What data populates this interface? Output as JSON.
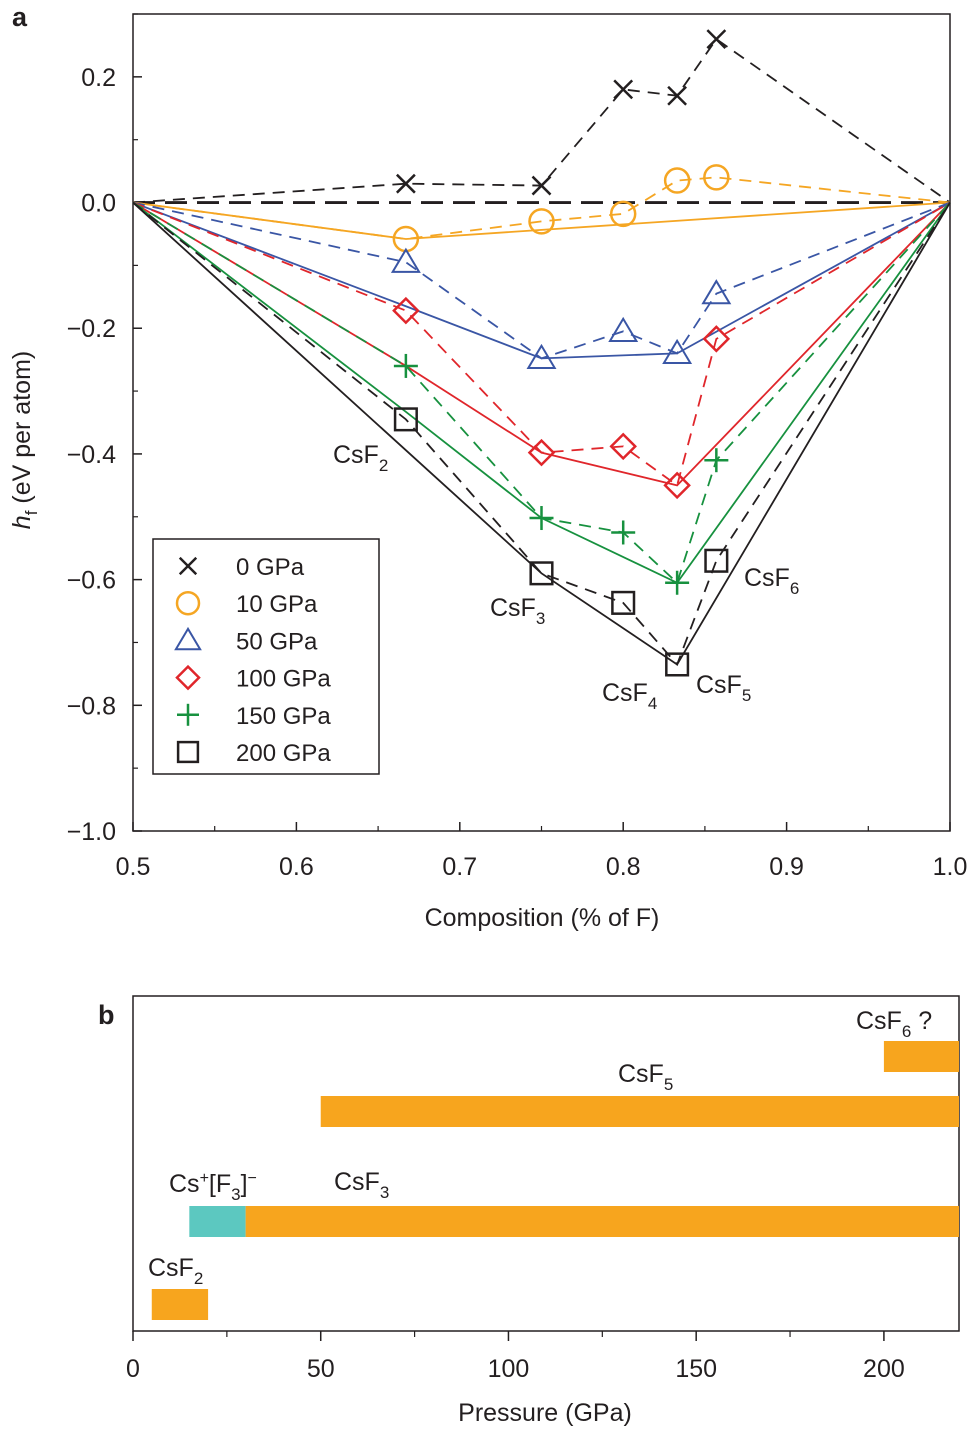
{
  "panels": {
    "a_label": "a",
    "b_label": "b"
  },
  "chart_data": [
    {
      "type": "scatter",
      "panel": "a",
      "title": "",
      "xlabel": "Composition (% of F)",
      "ylabel_main": "h",
      "ylabel_sub": "f",
      "ylabel_rest": " (eV per atom)",
      "xlim": [
        0.5,
        1.0
      ],
      "ylim": [
        -1.0,
        0.3
      ],
      "x_ticks": [
        {
          "v": 0.5,
          "label": "0.5"
        },
        {
          "v": 0.6,
          "label": "0.6"
        },
        {
          "v": 0.7,
          "label": "0.7"
        },
        {
          "v": 0.8,
          "label": "0.8"
        },
        {
          "v": 0.9,
          "label": "0.9"
        },
        {
          "v": 1.0,
          "label": "1.0"
        }
      ],
      "y_ticks": [
        {
          "v": 0.2,
          "label": "0.2"
        },
        {
          "v": 0.0,
          "label": "0.0"
        },
        {
          "v": -0.2,
          "label": "−0.2"
        },
        {
          "v": -0.4,
          "label": "−0.4"
        },
        {
          "v": -0.6,
          "label": "−0.6"
        },
        {
          "v": -0.8,
          "label": "−0.8"
        },
        {
          "v": -1.0,
          "label": "−1.0"
        }
      ],
      "series": [
        {
          "name": "0 GPa",
          "marker": "x",
          "color": "#231f20",
          "points": [
            [
              0.5,
              0.0
            ],
            [
              0.667,
              0.03
            ],
            [
              0.75,
              0.027
            ],
            [
              0.8,
              0.18
            ],
            [
              0.833,
              0.17
            ],
            [
              0.857,
              0.26
            ],
            [
              1.0,
              0.0
            ]
          ],
          "hull": [
            [
              0.5,
              0.0
            ],
            [
              1.0,
              0.0
            ]
          ],
          "hull_style": "longdash"
        },
        {
          "name": "10 GPa",
          "marker": "circle",
          "color": "#f5a623",
          "points": [
            [
              0.5,
              0.0
            ],
            [
              0.667,
              -0.058
            ],
            [
              0.75,
              -0.03
            ],
            [
              0.8,
              -0.018
            ],
            [
              0.833,
              0.035
            ],
            [
              0.857,
              0.04
            ],
            [
              1.0,
              0.0
            ]
          ],
          "hull": [
            [
              0.5,
              0.0
            ],
            [
              0.667,
              -0.058
            ],
            [
              1.0,
              0.0
            ]
          ]
        },
        {
          "name": "50 GPa",
          "marker": "triangle",
          "color": "#3a56a5",
          "points": [
            [
              0.5,
              0.0
            ],
            [
              0.667,
              -0.095
            ],
            [
              0.75,
              -0.248
            ],
            [
              0.8,
              -0.205
            ],
            [
              0.833,
              -0.24
            ],
            [
              0.857,
              -0.145
            ],
            [
              1.0,
              0.0
            ]
          ],
          "hull": [
            [
              0.5,
              0.0
            ],
            [
              0.667,
              -0.165
            ],
            [
              0.75,
              -0.248
            ],
            [
              0.833,
              -0.24
            ],
            [
              1.0,
              0.0
            ]
          ]
        },
        {
          "name": "100 GPa",
          "marker": "diamond",
          "color": "#e0262b",
          "points": [
            [
              0.5,
              0.0
            ],
            [
              0.667,
              -0.172
            ],
            [
              0.75,
              -0.398
            ],
            [
              0.8,
              -0.388
            ],
            [
              0.833,
              -0.45
            ],
            [
              0.857,
              -0.217
            ],
            [
              1.0,
              0.0
            ]
          ],
          "hull": [
            [
              0.5,
              0.0
            ],
            [
              0.667,
              -0.26
            ],
            [
              0.75,
              -0.398
            ],
            [
              0.833,
              -0.45
            ],
            [
              1.0,
              0.0
            ]
          ]
        },
        {
          "name": "150 GPa",
          "marker": "plus",
          "color": "#17913f",
          "points": [
            [
              0.5,
              0.0
            ],
            [
              0.667,
              -0.26
            ],
            [
              0.75,
              -0.502
            ],
            [
              0.8,
              -0.525
            ],
            [
              0.833,
              -0.605
            ],
            [
              0.857,
              -0.41
            ],
            [
              1.0,
              0.0
            ]
          ],
          "hull": [
            [
              0.5,
              0.0
            ],
            [
              0.667,
              -0.333
            ],
            [
              0.75,
              -0.502
            ],
            [
              0.833,
              -0.605
            ],
            [
              1.0,
              0.0
            ]
          ]
        },
        {
          "name": "200 GPa",
          "marker": "square",
          "color": "#231f20",
          "points": [
            [
              0.5,
              0.0
            ],
            [
              0.667,
              -0.345
            ],
            [
              0.75,
              -0.59
            ],
            [
              0.8,
              -0.637
            ],
            [
              0.833,
              -0.735
            ],
            [
              0.857,
              -0.57
            ],
            [
              1.0,
              0.0
            ]
          ],
          "hull": [
            [
              0.5,
              0.0
            ],
            [
              0.75,
              -0.59
            ],
            [
              0.833,
              -0.735
            ],
            [
              1.0,
              0.0
            ]
          ]
        }
      ],
      "compound_labels": [
        {
          "base": "CsF",
          "sub": "2"
        },
        {
          "base": "CsF",
          "sub": "3"
        },
        {
          "base": "CsF",
          "sub": "4"
        },
        {
          "base": "CsF",
          "sub": "5"
        },
        {
          "base": "CsF",
          "sub": "6"
        }
      ],
      "legend_position": "bottom-left"
    },
    {
      "type": "bar",
      "panel": "b",
      "orientation": "horizontal",
      "xlabel": "Pressure (GPa)",
      "xlim": [
        0,
        220
      ],
      "x_ticks": [
        {
          "v": 0,
          "label": "0"
        },
        {
          "v": 50,
          "label": "50"
        },
        {
          "v": 100,
          "label": "100"
        },
        {
          "v": 150,
          "label": "150"
        },
        {
          "v": 200,
          "label": "200"
        }
      ],
      "ranges": [
        {
          "name": "CsF6",
          "start": 200,
          "end": 220,
          "color": "#f7a51e"
        },
        {
          "name": "CsF5",
          "start": 50,
          "end": 220,
          "color": "#f7a51e"
        },
        {
          "name": "Cs+[F3]-",
          "start": 15,
          "end": 30,
          "color": "#5cc8c0"
        },
        {
          "name": "CsF3",
          "start": 30,
          "end": 220,
          "color": "#f7a51e"
        },
        {
          "name": "CsF2",
          "start": 5,
          "end": 20,
          "color": "#f7a51e"
        }
      ],
      "labels": {
        "csf6": {
          "base": "CsF",
          "sub": "6",
          "suffix": " ?"
        },
        "csf5": {
          "base": "CsF",
          "sub": "5"
        },
        "csf3": {
          "base": "CsF",
          "sub": "3"
        },
        "csf2": {
          "base": "CsF",
          "sub": "2"
        },
        "polyanion": {
          "a": "Cs",
          "sup1": "+",
          "b": "[F",
          "sub": "3",
          "c": "]",
          "sup2": "−"
        }
      }
    }
  ]
}
